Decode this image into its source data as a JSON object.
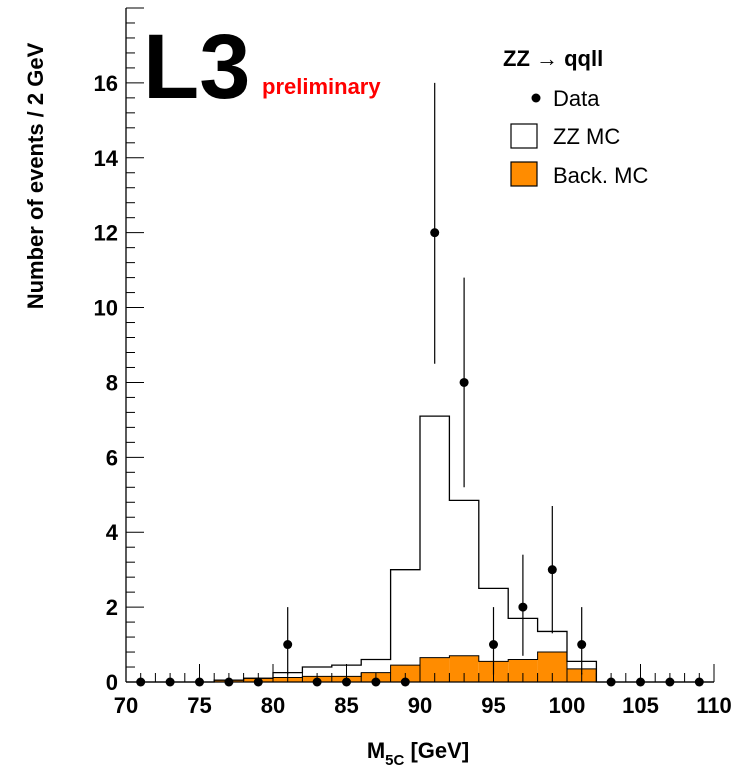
{
  "chart_data": {
    "type": "bar",
    "xlabel_main": "M",
    "xlabel_sub": "5C",
    "xlabel_rest": " [GeV]",
    "ylabel": "Number of events / 2 GeV",
    "xlim": [
      70,
      110
    ],
    "ylim": [
      0,
      18
    ],
    "xticks": [
      70,
      75,
      80,
      85,
      90,
      95,
      100,
      105,
      110
    ],
    "yticks": [
      0,
      2,
      4,
      6,
      8,
      10,
      12,
      14,
      16
    ],
    "logo": {
      "main": "L3",
      "sub": "preliminary"
    },
    "legend": {
      "title": "ZZ → qqll",
      "entries": [
        "Data",
        "ZZ MC",
        "Back. MC"
      ],
      "placement": "top-right"
    },
    "bin_edges": [
      70,
      72,
      74,
      76,
      78,
      80,
      82,
      84,
      86,
      88,
      90,
      92,
      94,
      96,
      98,
      100,
      102,
      104,
      106,
      108,
      110
    ],
    "series": [
      {
        "name": "ZZ MC",
        "style": "histogram-outline",
        "color": "#000000",
        "values": [
          0,
          0,
          0,
          0.05,
          0.1,
          0.25,
          0.4,
          0.45,
          0.6,
          3.0,
          7.1,
          4.85,
          2.5,
          1.7,
          1.35,
          0.55,
          0,
          0,
          0,
          0
        ]
      },
      {
        "name": "Back. MC",
        "style": "histogram-filled",
        "color": "#ff8c00",
        "values": [
          0,
          0,
          0,
          0.05,
          0.1,
          0.12,
          0.15,
          0.15,
          0.25,
          0.45,
          0.65,
          0.7,
          0.55,
          0.6,
          0.8,
          0.35,
          0,
          0,
          0,
          0
        ]
      },
      {
        "name": "Data",
        "style": "points-with-errors",
        "color": "#000000",
        "x": [
          71,
          73,
          75,
          77,
          79,
          81,
          83,
          85,
          87,
          89,
          91,
          93,
          95,
          97,
          99,
          101,
          103,
          105,
          107,
          109
        ],
        "y": [
          0,
          0,
          0,
          0,
          0,
          1,
          0,
          0,
          0,
          0,
          12,
          8,
          1,
          2,
          3,
          1,
          0,
          0,
          0,
          0
        ],
        "err_low": [
          0,
          0,
          0,
          0,
          0,
          0.8,
          0,
          0,
          0,
          0,
          3.5,
          2.8,
          0.8,
          1.3,
          1.7,
          0.8,
          0,
          0,
          0,
          0
        ],
        "err_high": [
          0,
          0,
          0,
          0,
          0,
          1.0,
          0,
          0,
          0,
          0,
          4.0,
          2.8,
          1.0,
          1.4,
          1.7,
          1.0,
          0,
          0,
          0,
          0
        ]
      }
    ]
  }
}
